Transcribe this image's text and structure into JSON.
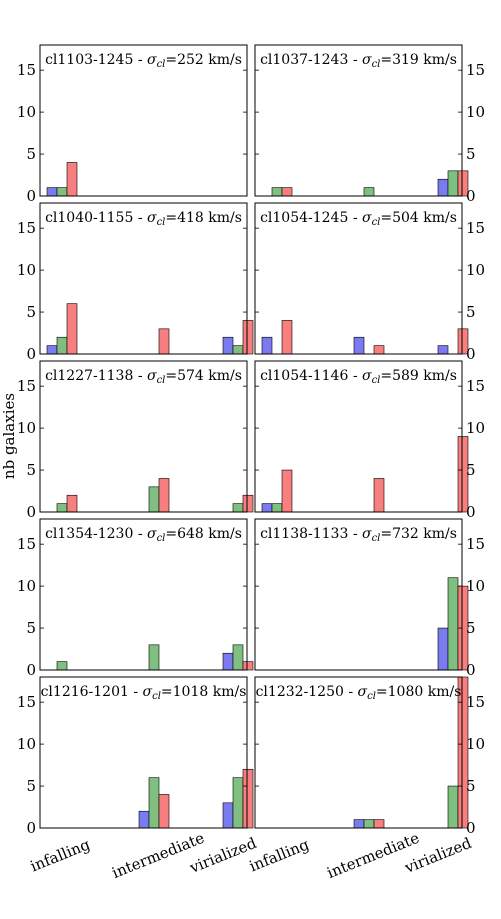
{
  "figure": {
    "ylabel": "nb galaxies",
    "categories": [
      "infalling",
      "intermediate",
      "virialized"
    ],
    "colors": [
      "#7b7bf0",
      "#7fbf7f",
      "#f77f7f"
    ],
    "yticks": [
      "0",
      "5",
      "10",
      "15"
    ]
  },
  "chart_data": [
    {
      "type": "bar",
      "title_prefix": "cl1103-1245 - ",
      "title_suffix": "=252 km/s",
      "categories": [
        "infalling",
        "intermediate",
        "virialized"
      ],
      "ylim": [
        0,
        18
      ],
      "series": [
        {
          "values": [
            1,
            0,
            0
          ]
        },
        {
          "values": [
            1,
            0,
            0
          ]
        },
        {
          "values": [
            4,
            0,
            0
          ]
        }
      ]
    },
    {
      "type": "bar",
      "title_prefix": "cl1037-1243 - ",
      "title_suffix": "=319 km/s",
      "categories": [
        "infalling",
        "intermediate",
        "virialized"
      ],
      "ylim": [
        0,
        18
      ],
      "series": [
        {
          "values": [
            0,
            0,
            2
          ]
        },
        {
          "values": [
            1,
            1,
            3
          ]
        },
        {
          "values": [
            1,
            0,
            3
          ]
        }
      ]
    },
    {
      "type": "bar",
      "title_prefix": "cl1040-1155 - ",
      "title_suffix": "=418 km/s",
      "categories": [
        "infalling",
        "intermediate",
        "virialized"
      ],
      "ylim": [
        0,
        18
      ],
      "series": [
        {
          "values": [
            1,
            0,
            2
          ]
        },
        {
          "values": [
            2,
            0,
            1
          ]
        },
        {
          "values": [
            6,
            3,
            4
          ]
        }
      ]
    },
    {
      "type": "bar",
      "title_prefix": "cl1054-1245 - ",
      "title_suffix": "=504 km/s",
      "categories": [
        "infalling",
        "intermediate",
        "virialized"
      ],
      "ylim": [
        0,
        18
      ],
      "series": [
        {
          "values": [
            2,
            2,
            1
          ]
        },
        {
          "values": [
            0,
            0,
            0
          ]
        },
        {
          "values": [
            4,
            1,
            3
          ]
        }
      ]
    },
    {
      "type": "bar",
      "title_prefix": "cl1227-1138 - ",
      "title_suffix": "=574 km/s",
      "categories": [
        "infalling",
        "intermediate",
        "virialized"
      ],
      "ylim": [
        0,
        18
      ],
      "series": [
        {
          "values": [
            0,
            0,
            0
          ]
        },
        {
          "values": [
            1,
            3,
            1
          ]
        },
        {
          "values": [
            2,
            4,
            2
          ]
        }
      ]
    },
    {
      "type": "bar",
      "title_prefix": "cl1054-1146 - ",
      "title_suffix": "=589 km/s",
      "categories": [
        "infalling",
        "intermediate",
        "virialized"
      ],
      "ylim": [
        0,
        18
      ],
      "series": [
        {
          "values": [
            1,
            0,
            0
          ]
        },
        {
          "values": [
            1,
            0,
            0
          ]
        },
        {
          "values": [
            5,
            4,
            9
          ]
        }
      ]
    },
    {
      "type": "bar",
      "title_prefix": "cl1354-1230 - ",
      "title_suffix": "=648 km/s",
      "categories": [
        "infalling",
        "intermediate",
        "virialized"
      ],
      "ylim": [
        0,
        18
      ],
      "series": [
        {
          "values": [
            0,
            0,
            2
          ]
        },
        {
          "values": [
            1,
            3,
            3
          ]
        },
        {
          "values": [
            0,
            0,
            1
          ]
        }
      ]
    },
    {
      "type": "bar",
      "title_prefix": "cl1138-1133 - ",
      "title_suffix": "=732 km/s",
      "categories": [
        "infalling",
        "intermediate",
        "virialized"
      ],
      "ylim": [
        0,
        18
      ],
      "series": [
        {
          "values": [
            0,
            0,
            5
          ]
        },
        {
          "values": [
            0,
            0,
            11
          ]
        },
        {
          "values": [
            0,
            0,
            10
          ]
        }
      ]
    },
    {
      "type": "bar",
      "title_prefix": "cl1216-1201 - ",
      "title_suffix": "=1018 km/s",
      "categories": [
        "infalling",
        "intermediate",
        "virialized"
      ],
      "ylim": [
        0,
        18
      ],
      "series": [
        {
          "values": [
            0,
            2,
            3
          ]
        },
        {
          "values": [
            0,
            6,
            6
          ]
        },
        {
          "values": [
            0,
            4,
            7
          ]
        }
      ]
    },
    {
      "type": "bar",
      "title_prefix": "cl1232-1250 - ",
      "title_suffix": "=1080 km/s",
      "categories": [
        "infalling",
        "intermediate",
        "virialized"
      ],
      "ylim": [
        0,
        18
      ],
      "series": [
        {
          "values": [
            0,
            1,
            0
          ]
        },
        {
          "values": [
            0,
            1,
            5
          ]
        },
        {
          "values": [
            0,
            1,
            18
          ]
        }
      ]
    }
  ]
}
